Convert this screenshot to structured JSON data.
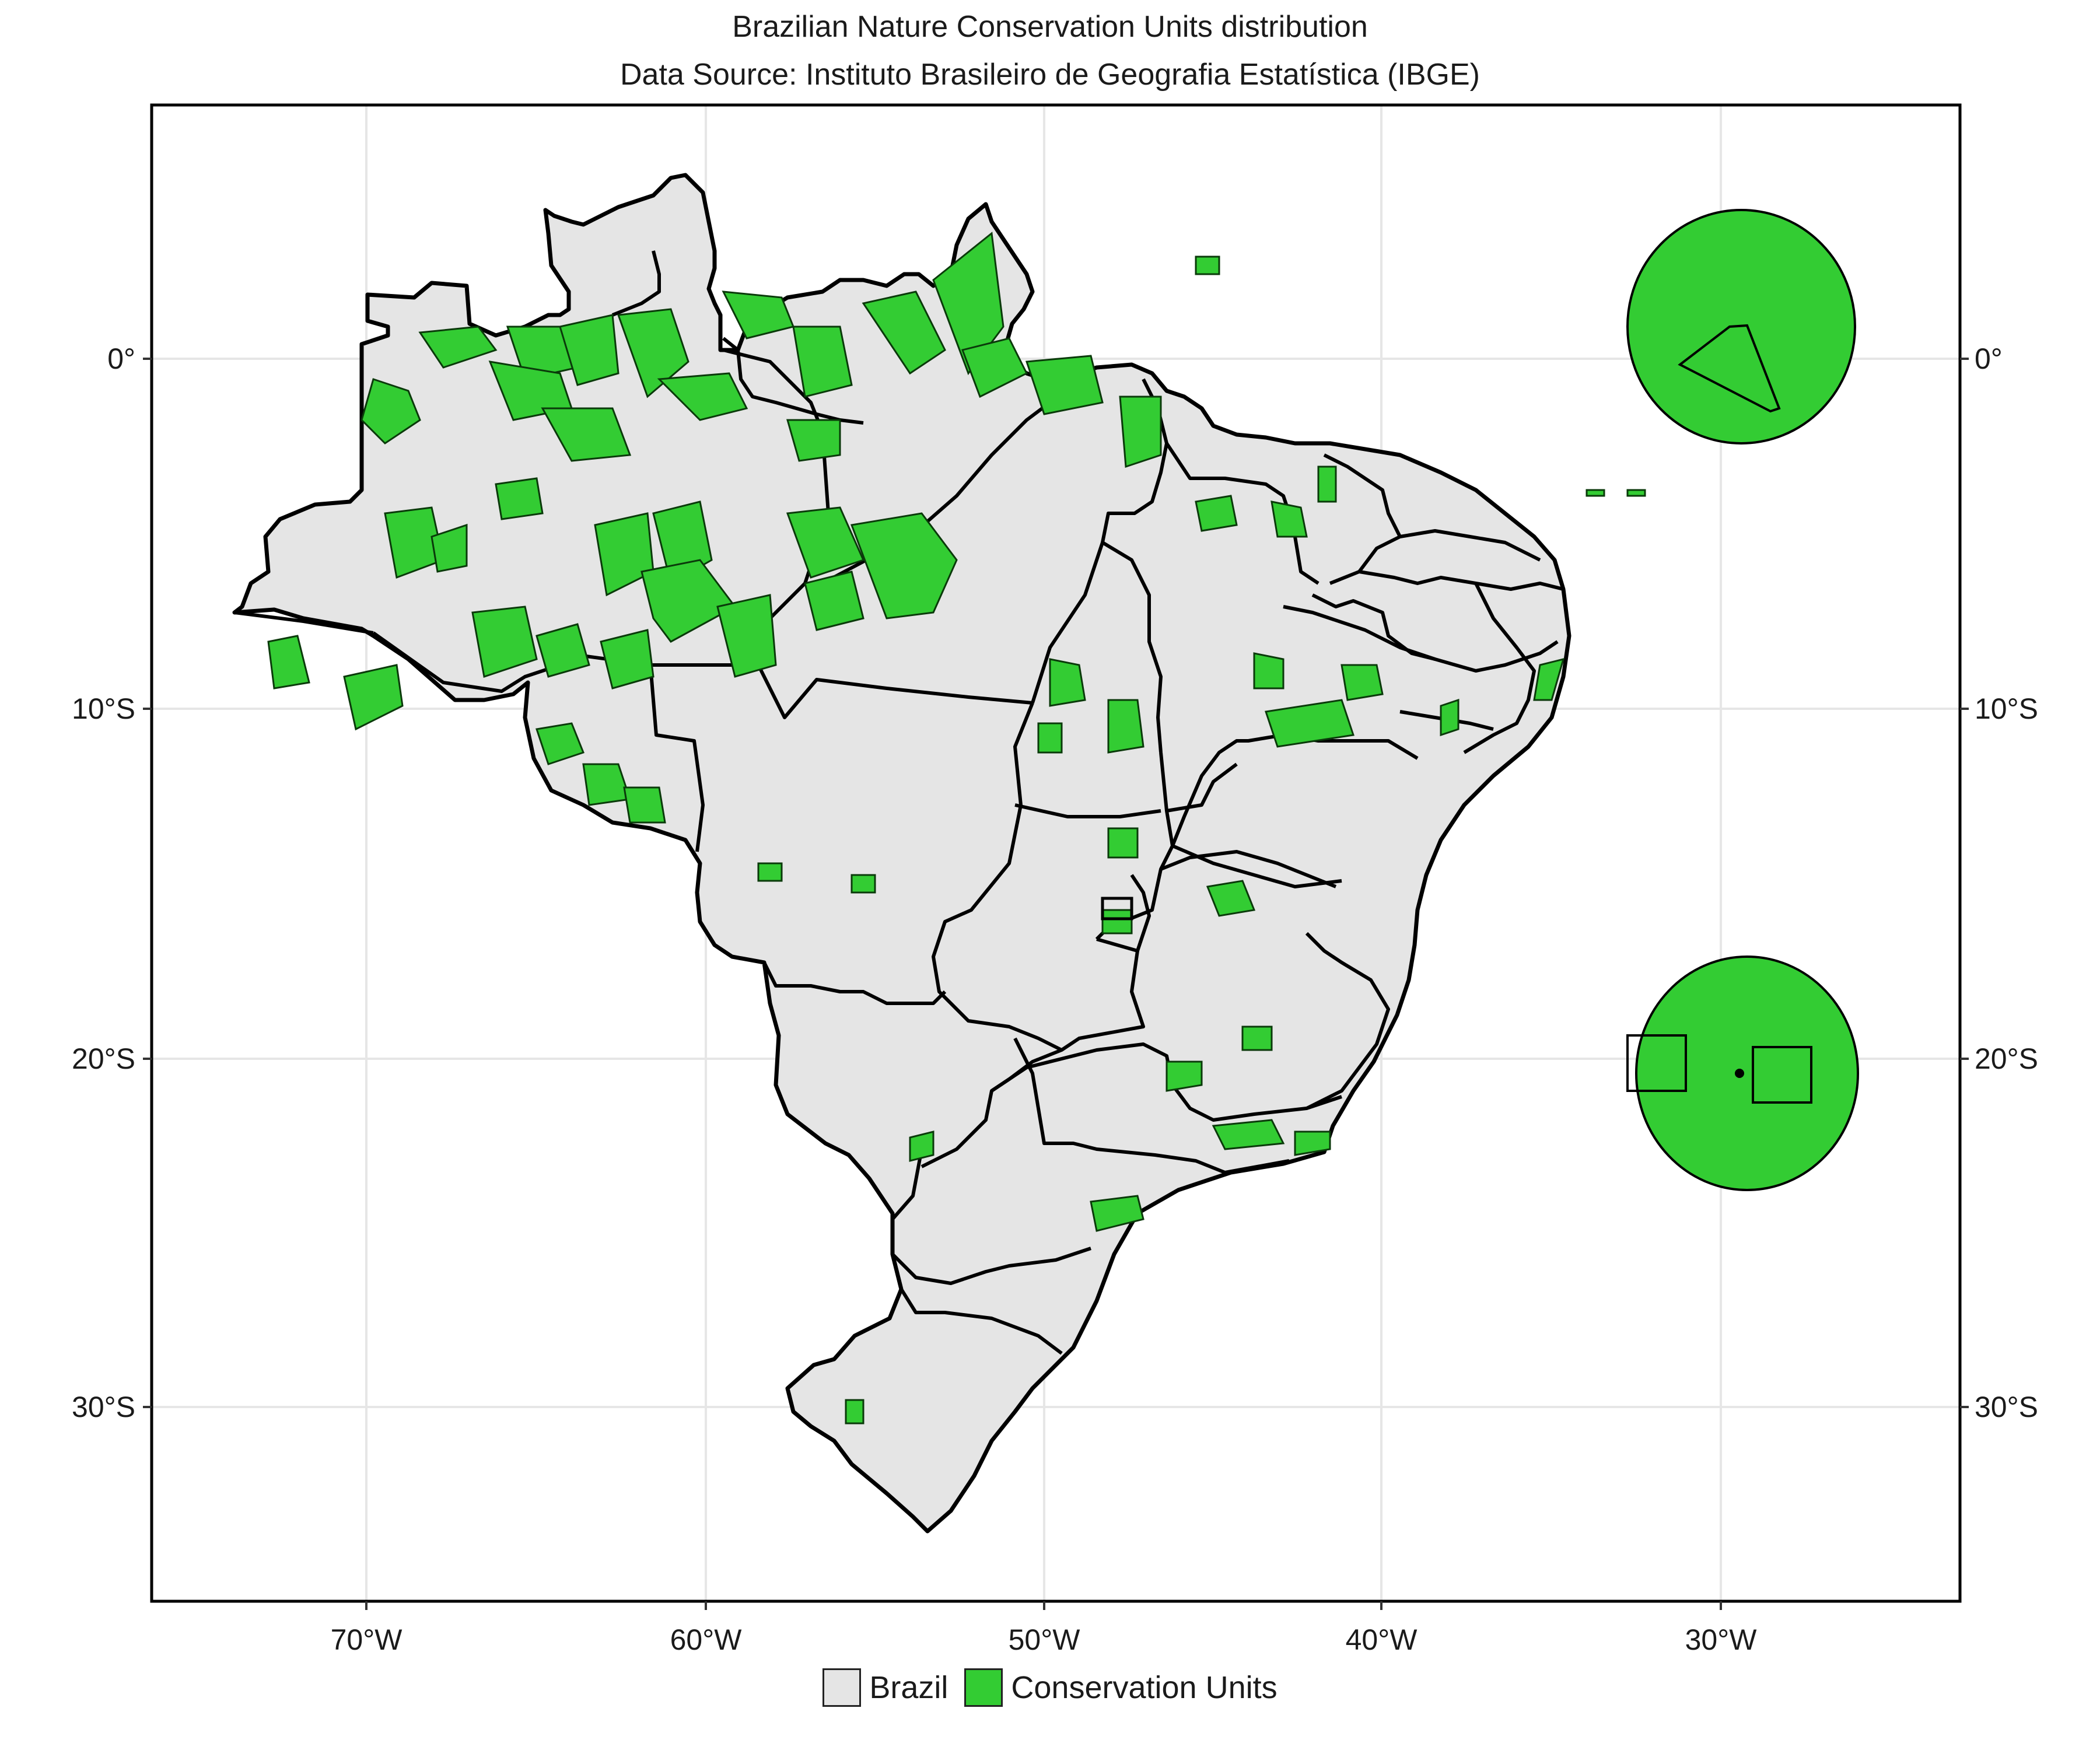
{
  "title": "Brazilian Nature Conservation Units distribution",
  "subtitle": "Data Source: Instituto Brasileiro de Geografia Estatística (IBGE)",
  "colors": {
    "brazil_fill": "#e5e5e5",
    "units_fill": "#33cc33",
    "border": "#000000",
    "grid": "#e6e6e6"
  },
  "axes": {
    "x_ticks": [
      "70°W",
      "60°W",
      "50°W",
      "40°W",
      "30°W"
    ],
    "y_ticks_left": [
      "0°",
      "10°S",
      "20°S",
      "30°S"
    ],
    "y_ticks_right": [
      "0°",
      "10°S",
      "20°S",
      "30°S"
    ],
    "x_range": [
      -76.5,
      -23
    ],
    "y_range": [
      -35.5,
      7.2
    ]
  },
  "legend": [
    {
      "label": "Brazil",
      "color": "#e5e5e5"
    },
    {
      "label": "Conservation Units",
      "color": "#33cc33"
    }
  ]
}
